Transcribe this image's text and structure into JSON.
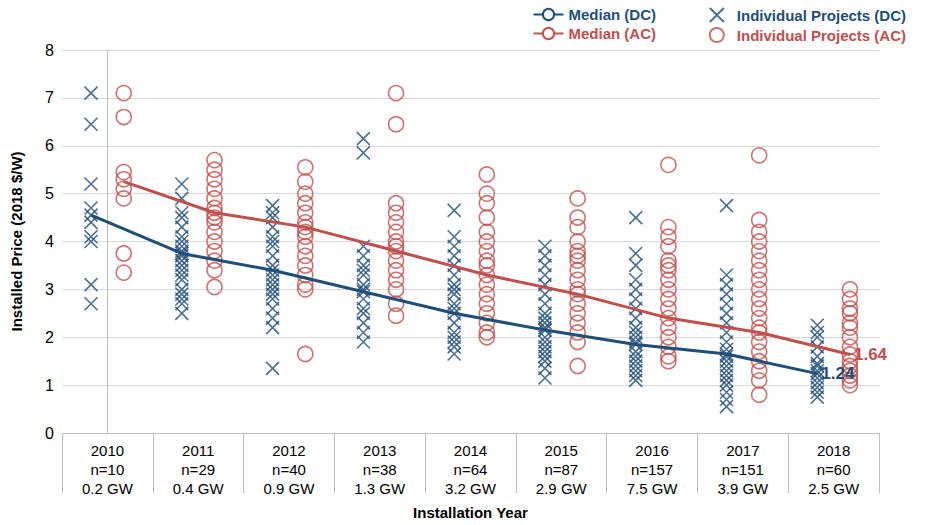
{
  "chart_data": {
    "type": "scatter",
    "x_label": "Installation Year",
    "y_label": "Installed Price (2018 $/W)",
    "categories": [
      "2010\nn=10\n0.2 GW",
      "2011\nn=29\n0.4 GW",
      "2012\nn=40\n0.9 GW",
      "2013\nn=38\n1.3 GW",
      "2014\nn=64\n3.2 GW",
      "2015\nn=87\n2.9 GW",
      "2016\nn=157\n7.5 GW",
      "2017\nn=151\n3.9 GW",
      "2018\nn=60\n2.5 GW"
    ],
    "ylim": [
      0,
      8
    ],
    "yticks": [
      0,
      1,
      2,
      3,
      4,
      5,
      6,
      7,
      8
    ],
    "grid": true,
    "legend": "top-right",
    "series": [
      {
        "name": "Median (DC)",
        "type": "line",
        "line_style": "solid",
        "color": "#1f4e79",
        "values": [
          4.55,
          3.75,
          3.4,
          2.95,
          2.5,
          2.15,
          1.85,
          1.65,
          1.24
        ]
      },
      {
        "name": "Median (AC)",
        "type": "line",
        "line_style": "solid",
        "color": "#c0504d",
        "values": [
          5.25,
          4.6,
          4.3,
          3.8,
          3.3,
          2.9,
          2.4,
          2.1,
          1.64
        ]
      },
      {
        "name": "Individual Projects (DC)",
        "type": "scatter",
        "marker": "x",
        "color": "#1f4e79",
        "values": [
          [
            7.1,
            6.45,
            5.2,
            4.7,
            4.55,
            4.4,
            4.1,
            3.1,
            2.7,
            4.0
          ],
          [
            5.2,
            4.9,
            4.5,
            4.3,
            4.1,
            4.0,
            3.9,
            3.8,
            3.75,
            3.7,
            3.6,
            3.5,
            3.4,
            3.3,
            3.2,
            3.0,
            2.9,
            2.8,
            2.7,
            2.5,
            4.6
          ],
          [
            4.75,
            4.6,
            4.5,
            4.3,
            4.1,
            3.9,
            3.7,
            3.5,
            3.4,
            3.3,
            3.1,
            3.0,
            2.9,
            2.8,
            2.6,
            2.4,
            2.2,
            1.35,
            4.0,
            3.2
          ],
          [
            6.15,
            5.85,
            3.9,
            3.7,
            3.5,
            3.3,
            3.1,
            3.0,
            2.95,
            2.8,
            2.6,
            2.5,
            2.3,
            2.1,
            1.9,
            3.4
          ],
          [
            4.65,
            4.1,
            3.9,
            3.7,
            3.5,
            3.3,
            3.1,
            2.9,
            2.7,
            2.5,
            2.3,
            2.1,
            2.0,
            1.9,
            1.8,
            1.65,
            3.0,
            2.6
          ],
          [
            3.9,
            3.7,
            3.5,
            3.3,
            3.1,
            2.9,
            2.7,
            2.5,
            2.3,
            2.15,
            2.0,
            1.9,
            1.8,
            1.7,
            1.6,
            1.5,
            1.35,
            1.15,
            2.4,
            2.2
          ],
          [
            4.5,
            3.75,
            3.5,
            3.2,
            3.0,
            2.8,
            2.6,
            2.4,
            2.2,
            2.0,
            1.85,
            1.7,
            1.6,
            1.5,
            1.4,
            1.3,
            1.2,
            1.1,
            1.9,
            2.1
          ],
          [
            4.75,
            3.3,
            3.1,
            2.9,
            2.7,
            2.5,
            2.3,
            2.1,
            1.9,
            1.75,
            1.65,
            1.5,
            1.4,
            1.3,
            1.2,
            1.1,
            1.0,
            0.85,
            0.7,
            0.55,
            1.6
          ],
          [
            2.25,
            2.1,
            2.0,
            1.8,
            1.6,
            1.45,
            1.3,
            1.24,
            1.15,
            1.05,
            0.95,
            0.85,
            0.75,
            1.4
          ]
        ]
      },
      {
        "name": "Individual Projects (AC)",
        "type": "scatter",
        "marker": "circle",
        "color": "#c0504d",
        "values": [
          [
            7.1,
            6.6,
            5.45,
            5.3,
            5.1,
            4.9,
            3.75,
            3.35
          ],
          [
            5.7,
            5.5,
            5.3,
            5.1,
            4.9,
            4.7,
            4.6,
            4.4,
            4.2,
            4.0,
            3.8,
            3.6,
            3.4,
            3.05,
            4.5
          ],
          [
            5.55,
            5.25,
            5.0,
            4.8,
            4.6,
            4.4,
            4.3,
            4.1,
            3.9,
            3.7,
            3.5,
            3.3,
            3.1,
            3.0,
            1.65,
            4.2
          ],
          [
            7.1,
            6.45,
            4.8,
            4.6,
            4.4,
            4.2,
            4.0,
            3.8,
            3.6,
            3.4,
            3.2,
            3.0,
            2.7,
            2.45,
            3.9
          ],
          [
            5.4,
            5.0,
            4.8,
            4.5,
            4.2,
            4.0,
            3.8,
            3.5,
            3.3,
            3.1,
            2.9,
            2.7,
            2.5,
            2.3,
            2.1,
            2.0,
            3.6
          ],
          [
            4.9,
            4.5,
            4.3,
            4.0,
            3.8,
            3.6,
            3.4,
            3.2,
            3.0,
            2.9,
            2.7,
            2.5,
            2.3,
            2.1,
            1.9,
            1.4,
            3.7
          ],
          [
            5.6,
            4.3,
            4.1,
            3.9,
            3.6,
            3.4,
            3.2,
            3.0,
            2.8,
            2.6,
            2.4,
            2.2,
            2.0,
            1.8,
            1.6,
            1.5,
            3.5
          ],
          [
            5.8,
            4.45,
            4.2,
            4.0,
            3.8,
            3.6,
            3.4,
            3.2,
            3.0,
            2.8,
            2.6,
            2.4,
            2.2,
            2.1,
            1.9,
            1.7,
            1.5,
            1.3,
            1.1,
            0.8
          ],
          [
            3.0,
            2.8,
            2.6,
            2.5,
            2.3,
            2.2,
            2.0,
            1.8,
            1.64,
            1.5,
            1.4,
            1.3,
            1.2,
            1.1,
            1.0
          ]
        ]
      }
    ],
    "annotations": [
      {
        "text": "1.64",
        "series": "Median (AC)"
      },
      {
        "text": "1.24",
        "series": "Median (DC)"
      }
    ]
  }
}
